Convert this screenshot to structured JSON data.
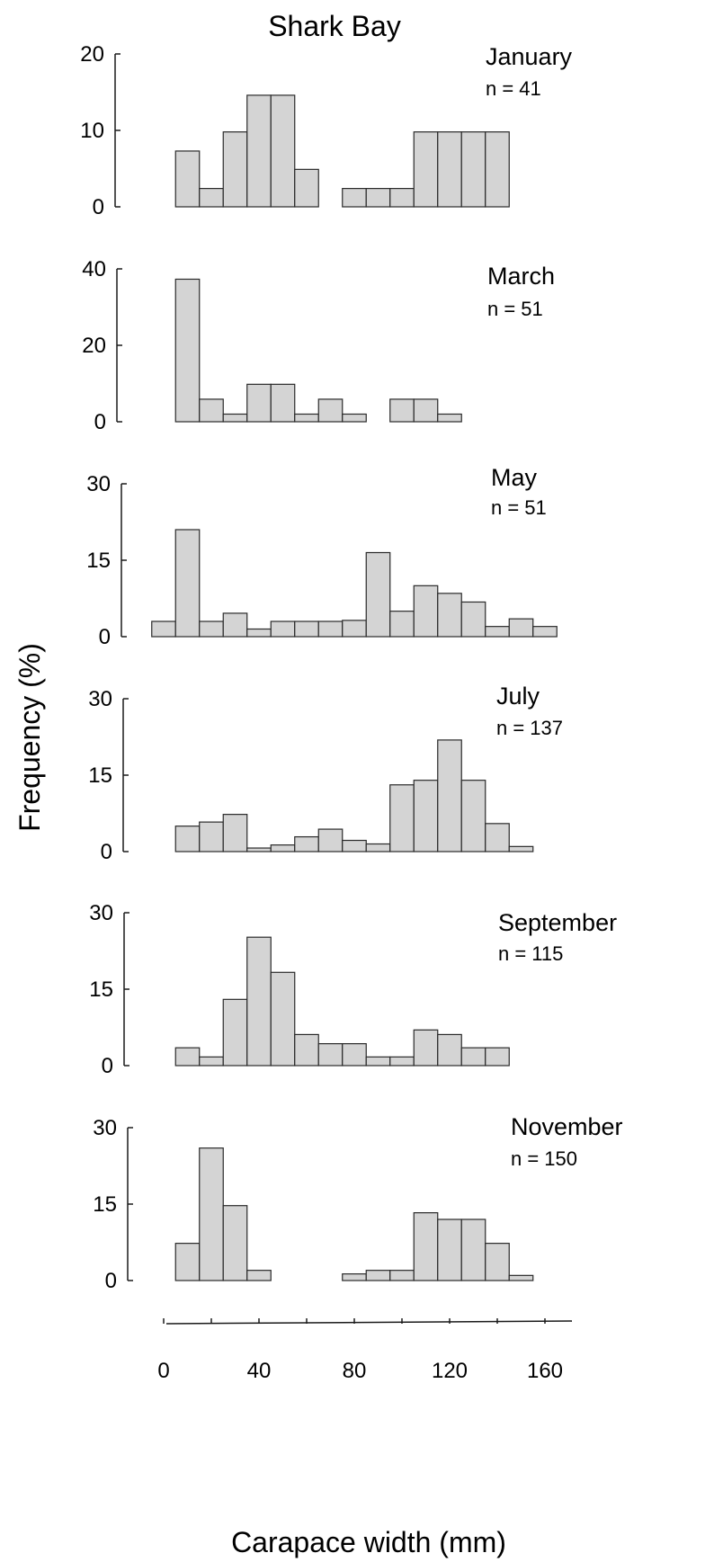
{
  "chart_data": {
    "title": "Shark Bay",
    "ylabel": "Frequency (%)",
    "xlabel": "Carapace width (mm)",
    "x_ticks": [
      0,
      40,
      80,
      120,
      160
    ],
    "bin_width": 10,
    "bar_color": "#d4d4d4",
    "panels": [
      {
        "type": "bar",
        "month": "January",
        "n_label": "n = 41",
        "ylim": [
          0,
          20
        ],
        "y_ticks": [
          0,
          10,
          20
        ],
        "x_start": 5,
        "values": [
          7.3,
          2.4,
          9.8,
          14.6,
          14.6,
          4.9,
          0,
          2.4,
          2.4,
          2.4,
          9.8,
          9.8,
          9.8,
          9.8
        ]
      },
      {
        "type": "bar",
        "month": "March",
        "n_label": "n = 51",
        "ylim": [
          0,
          40
        ],
        "y_ticks": [
          0,
          20,
          40
        ],
        "x_start": 5,
        "values": [
          37.3,
          5.9,
          2.0,
          9.8,
          9.8,
          2.0,
          5.9,
          2.0,
          0,
          5.9,
          5.9,
          2.0
        ]
      },
      {
        "type": "bar",
        "month": "May",
        "n_label": "n = 51",
        "ylim": [
          0,
          30
        ],
        "y_ticks": [
          0,
          15,
          30
        ],
        "x_start": -5,
        "values": [
          3.0,
          21.0,
          3.0,
          4.6,
          1.5,
          3.0,
          3.0,
          3.0,
          3.2,
          16.5,
          5.0,
          10.0,
          8.5,
          6.8,
          2.0,
          3.5,
          2.0
        ]
      },
      {
        "type": "bar",
        "month": "July",
        "n_label": "n = 137",
        "ylim": [
          0,
          30
        ],
        "y_ticks": [
          0,
          15,
          30
        ],
        "x_start": 5,
        "values": [
          5.0,
          5.8,
          7.3,
          0.7,
          1.3,
          2.9,
          4.4,
          2.2,
          1.5,
          13.1,
          14.0,
          21.9,
          14.0,
          5.5,
          1.0
        ]
      },
      {
        "type": "bar",
        "month": "September",
        "n_label": "n = 115",
        "ylim": [
          0,
          30
        ],
        "y_ticks": [
          0,
          15,
          30
        ],
        "x_start": 5,
        "values": [
          3.5,
          1.7,
          13.0,
          25.2,
          18.3,
          6.1,
          4.3,
          4.3,
          1.7,
          1.7,
          7.0,
          6.1,
          3.5,
          3.5
        ]
      },
      {
        "type": "bar",
        "month": "November",
        "n_label": "n = 150",
        "ylim": [
          0,
          30
        ],
        "y_ticks": [
          0,
          15,
          30
        ],
        "x_start": 5,
        "values": [
          7.3,
          26.0,
          14.7,
          2.0,
          0,
          0,
          0,
          1.3,
          2.0,
          2.0,
          13.3,
          12.0,
          12.0,
          7.3,
          1.0
        ]
      }
    ]
  }
}
